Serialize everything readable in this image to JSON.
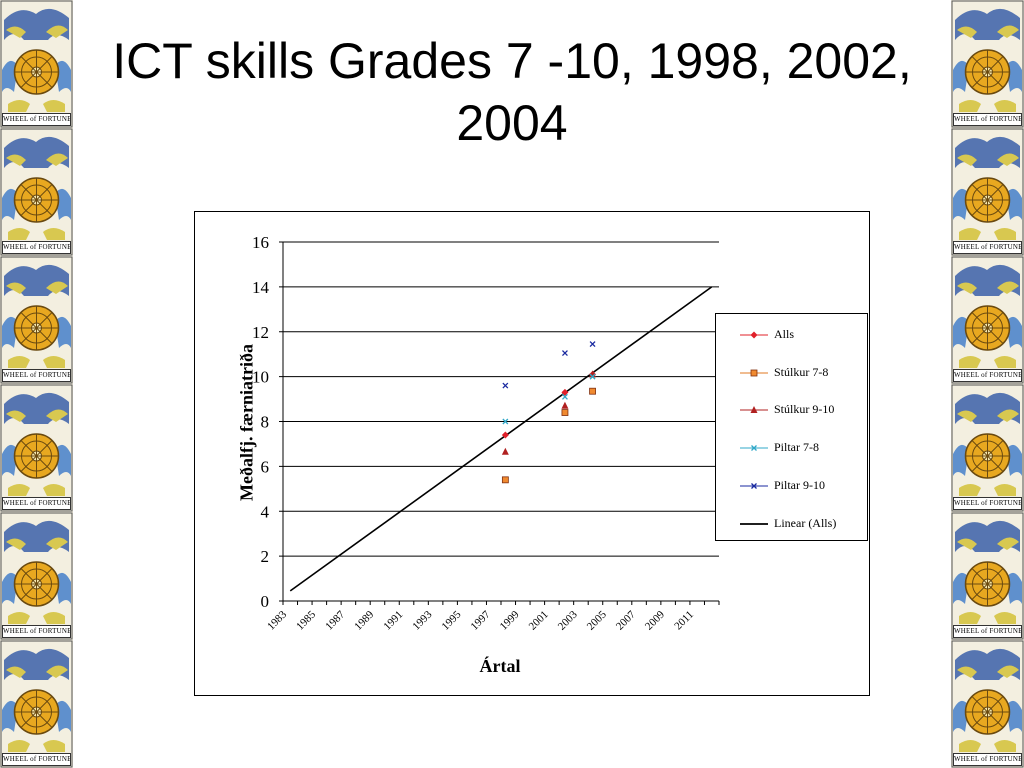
{
  "slide": {
    "title": "ICT skills Grades 7 -10, 1998, 2002, 2004"
  },
  "decoration": {
    "card_caption": "WHEEL of FORTUNE",
    "tile_count_per_side": 6,
    "colors": {
      "wheel": "#e8a820",
      "sky": "#3a5fa8",
      "wings": "#d8c850",
      "background": "#f3efe0"
    }
  },
  "chart_data": {
    "type": "scatter",
    "title": "",
    "xlabel": "Ártal",
    "ylabel": "Meðalfj. færniatriða",
    "xlim": [
      1983,
      2013
    ],
    "ylim": [
      0,
      16
    ],
    "x_ticks": [
      "1983",
      "1985",
      "1987",
      "1989",
      "1991",
      "1993",
      "1995",
      "1997",
      "1999",
      "2001",
      "2003",
      "2005",
      "2007",
      "2009",
      "2011"
    ],
    "y_ticks": [
      "0",
      "2",
      "4",
      "6",
      "8",
      "10",
      "12",
      "14",
      "16"
    ],
    "grid": "horizontal",
    "legend_position": "right",
    "series": [
      {
        "name": "Alls",
        "marker": "diamond",
        "color": "#e0202a",
        "points": [
          [
            1998.3,
            7.4
          ],
          [
            2002.4,
            9.3
          ],
          [
            2004.3,
            10.1
          ]
        ]
      },
      {
        "name": "Stúlkur 7-8",
        "marker": "square",
        "color": "#e07820",
        "points": [
          [
            1998.3,
            5.4
          ],
          [
            2002.4,
            8.4
          ],
          [
            2004.3,
            9.35
          ]
        ]
      },
      {
        "name": "Stúlkur 9-10",
        "marker": "triangle",
        "color": "#b02020",
        "points": [
          [
            1998.3,
            6.65
          ],
          [
            2002.4,
            8.7
          ],
          [
            2004.3,
            10.1
          ]
        ]
      },
      {
        "name": "Piltar 7-8",
        "marker": "x",
        "color": "#30a8c8",
        "points": [
          [
            1998.3,
            8.0
          ],
          [
            2002.4,
            9.1
          ],
          [
            2004.3,
            10.0
          ]
        ]
      },
      {
        "name": "Piltar 9-10",
        "marker": "x",
        "color": "#1a2aa0",
        "points": [
          [
            1998.3,
            9.6
          ],
          [
            2002.4,
            11.05
          ],
          [
            2004.3,
            11.45
          ]
        ]
      }
    ],
    "trendline": {
      "name": "Linear (Alls)",
      "color": "#000000",
      "points": [
        [
          1983.5,
          0.45
        ],
        [
          2012.5,
          14.0
        ]
      ]
    }
  }
}
